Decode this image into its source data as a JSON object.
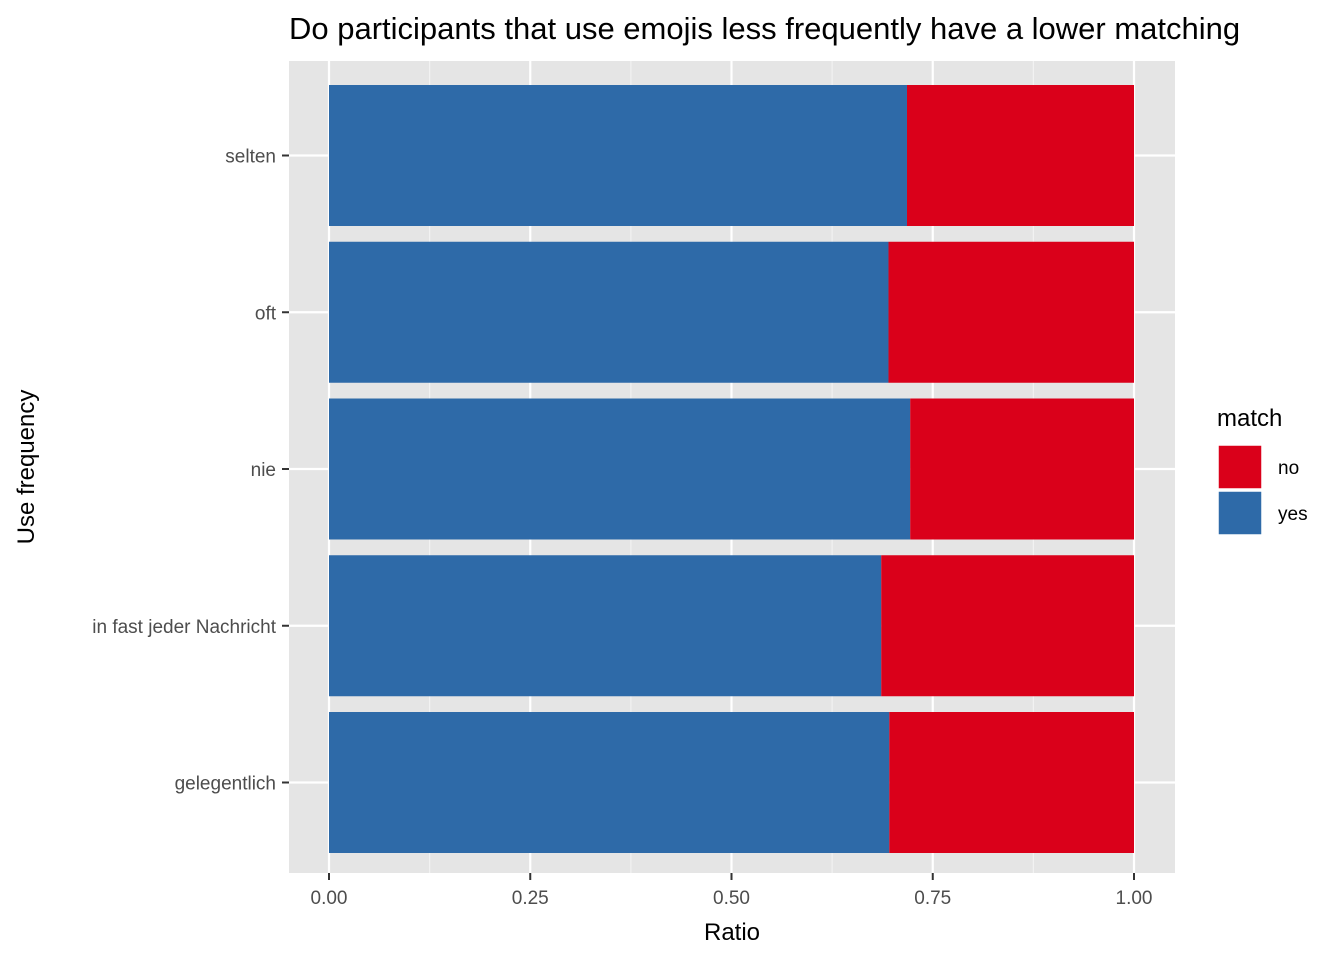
{
  "chart_data": {
    "type": "bar",
    "orientation": "horizontal",
    "stacked": true,
    "title": "Do participants that use emojis less frequently have a lower matching",
    "xlabel": "Ratio",
    "ylabel": "Use frequency",
    "xlim": [
      0,
      1
    ],
    "x_ticks": [
      "0.00",
      "0.25",
      "0.50",
      "0.75",
      "1.00"
    ],
    "categories": [
      "gelegentlich",
      "in fast jeder Nachricht",
      "nie",
      "oft",
      "selten"
    ],
    "series": [
      {
        "name": "yes",
        "color": "#2e6aa8",
        "values": [
          0.696,
          0.686,
          0.722,
          0.695,
          0.718
        ]
      },
      {
        "name": "no",
        "color": "#da001a",
        "values": [
          0.304,
          0.314,
          0.278,
          0.305,
          0.282
        ]
      }
    ],
    "legend": {
      "title": "match",
      "placement": "right",
      "items": [
        {
          "label": "no",
          "color": "#da001a"
        },
        {
          "label": "yes",
          "color": "#2e6aa8"
        }
      ]
    },
    "grid": true,
    "panel_background": "#e5e5e5"
  }
}
